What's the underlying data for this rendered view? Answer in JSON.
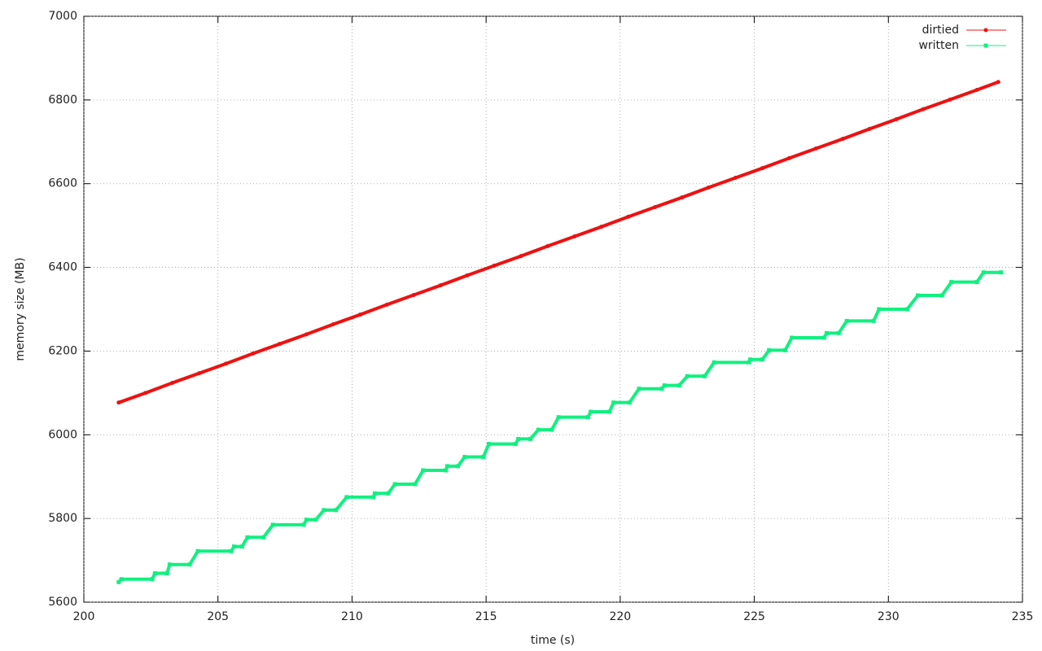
{
  "chart_data": {
    "type": "line",
    "xlabel": "time (s)",
    "ylabel": "memory size (MB)",
    "xlim": [
      200,
      235
    ],
    "xticks": [
      200,
      205,
      210,
      215,
      220,
      225,
      230,
      235
    ],
    "ylim": [
      5600,
      7000
    ],
    "yticks": [
      5600,
      5800,
      6000,
      6200,
      6400,
      6600,
      6800,
      7000
    ],
    "grid": true,
    "legend": "top-right",
    "series": [
      {
        "name": "dirtied",
        "color": "#f01010",
        "marker": "circle",
        "x": [
          201.3,
          202.3,
          203.3,
          204.3,
          205.3,
          206.3,
          207.3,
          208.3,
          209.3,
          210.3,
          211.3,
          212.3,
          213.3,
          214.3,
          215.3,
          216.3,
          217.3,
          218.3,
          219.3,
          220.3,
          221.3,
          222.3,
          223.3,
          224.3,
          225.3,
          226.3,
          227.3,
          228.3,
          229.3,
          230.3,
          231.3,
          232.3,
          233.3,
          234.1
        ],
        "values": [
          6077,
          6100,
          6124,
          6147,
          6170,
          6194,
          6217,
          6240,
          6264,
          6287,
          6311,
          6334,
          6357,
          6381,
          6404,
          6427,
          6451,
          6474,
          6497,
          6521,
          6544,
          6567,
          6591,
          6614,
          6637,
          6661,
          6684,
          6707,
          6731,
          6754,
          6778,
          6801,
          6824,
          6843
        ]
      },
      {
        "name": "written",
        "color": "#10f080",
        "marker": "square",
        "x": [
          201.3,
          201.4,
          202.55,
          202.65,
          203.1,
          203.2,
          203.95,
          204.25,
          205.5,
          205.6,
          205.9,
          206.1,
          206.7,
          207.05,
          208.2,
          208.3,
          208.65,
          208.95,
          209.4,
          209.8,
          210.8,
          210.85,
          211.35,
          211.6,
          212.35,
          212.65,
          213.5,
          213.55,
          213.95,
          214.2,
          214.9,
          215.1,
          216.1,
          216.2,
          216.65,
          216.95,
          217.45,
          217.7,
          218.8,
          218.9,
          219.6,
          219.75,
          220.35,
          220.7,
          221.55,
          221.65,
          222.2,
          222.5,
          223.15,
          223.5,
          224.8,
          224.85,
          225.3,
          225.55,
          226.15,
          226.4,
          227.6,
          227.7,
          228.15,
          228.45,
          229.45,
          229.65,
          230.7,
          231.1,
          232.0,
          232.35,
          233.3,
          233.55,
          234.2
        ],
        "values": [
          5648,
          5655,
          5655,
          5669,
          5669,
          5690,
          5690,
          5722,
          5722,
          5733,
          5733,
          5755,
          5755,
          5785,
          5785,
          5797,
          5797,
          5820,
          5820,
          5851,
          5851,
          5860,
          5860,
          5882,
          5882,
          5915,
          5915,
          5925,
          5925,
          5947,
          5947,
          5978,
          5978,
          5990,
          5990,
          6012,
          6012,
          6042,
          6042,
          6055,
          6055,
          6077,
          6077,
          6110,
          6110,
          6118,
          6118,
          6140,
          6140,
          6173,
          6173,
          6180,
          6180,
          6202,
          6202,
          6232,
          6232,
          6243,
          6243,
          6272,
          6272,
          6300,
          6300,
          6333,
          6333,
          6365,
          6365,
          6388,
          6388
        ]
      }
    ]
  }
}
